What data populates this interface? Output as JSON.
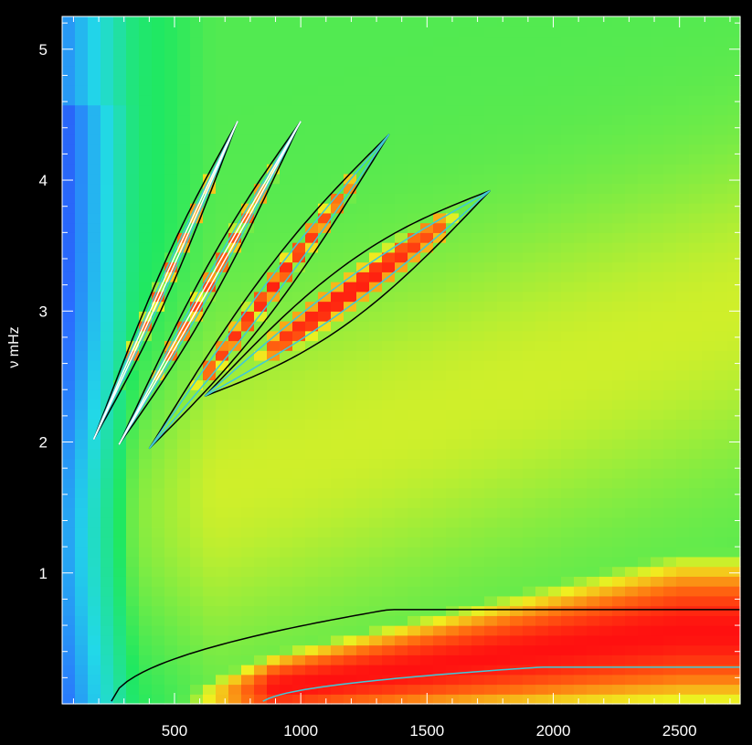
{
  "chart_data": {
    "type": "heatmap",
    "title": "",
    "xlabel": "",
    "ylabel": "ν mHz",
    "xlim": [
      55,
      2740
    ],
    "ylim": [
      0,
      5.25
    ],
    "x_ticks": [
      500,
      1000,
      1500,
      2000,
      2500
    ],
    "x_tick_labels": [
      "500",
      "1000",
      "1500",
      "2000",
      "2500"
    ],
    "y_ticks": [
      1,
      2,
      3,
      4,
      5
    ],
    "y_tick_labels": [
      "1",
      "2",
      "3",
      "4",
      "5"
    ],
    "grid": false,
    "colormap": [
      "#1a1aa8",
      "#2a6cff",
      "#22d8e8",
      "#20e860",
      "#f0f020",
      "#ff7010",
      "#ff1010"
    ],
    "ridges": [
      {
        "name": "",
        "x": [
          180,
          750
        ],
        "y": [
          2.02,
          4.45
        ],
        "intensity": 0.88,
        "width": 0.13
      },
      {
        "name": "",
        "x": [
          280,
          1000
        ],
        "y": [
          1.98,
          4.45
        ],
        "intensity": 0.92,
        "width": 0.14
      },
      {
        "name": "",
        "x": [
          400,
          1350
        ],
        "y": [
          1.95,
          4.35
        ],
        "intensity": 0.97,
        "width": 0.16
      },
      {
        "name": "",
        "x": [
          620,
          1750
        ],
        "y": [
          2.35,
          3.92
        ],
        "intensity": 1.0,
        "width": 0.2
      }
    ],
    "low_frequency_band": {
      "x": [
        55,
        2740
      ],
      "y_peak": [
        0.02,
        0.55
      ],
      "intensity": 1.0
    },
    "contour_colors": {
      "outer": "#000000",
      "inner": "#40c8d8",
      "core": "#ffffff"
    }
  }
}
